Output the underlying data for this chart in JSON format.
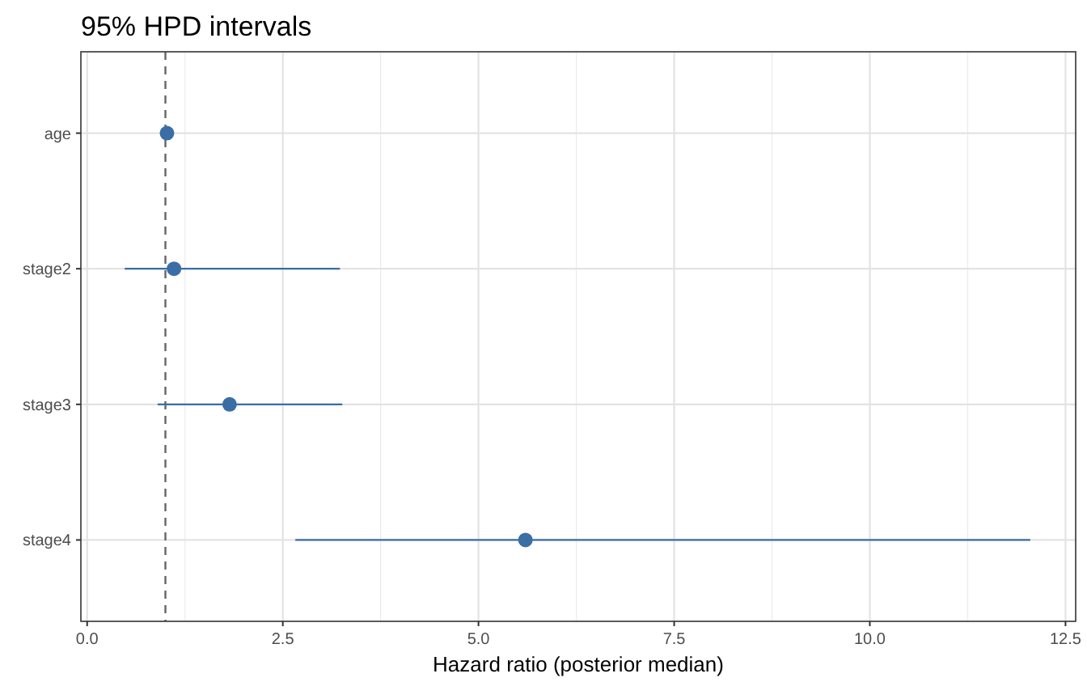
{
  "chart_data": {
    "type": "scatter",
    "orientation": "horizontal",
    "title": "95% HPD intervals",
    "xlabel": "Hazard ratio (posterior median)",
    "categories": [
      "age",
      "stage2",
      "stage3",
      "stage4"
    ],
    "values": [
      1.02,
      1.11,
      1.82,
      5.6
    ],
    "errors": [
      null,
      [
        0.48,
        3.23
      ],
      [
        0.9,
        3.26
      ],
      [
        2.66,
        12.05
      ]
    ],
    "color": "#3a6ea5",
    "xlim": [
      -0.08,
      12.63
    ],
    "xticks": [
      {
        "value": 0,
        "label": "0.0"
      },
      {
        "value": 2.5,
        "label": "2.5"
      },
      {
        "value": 5,
        "label": "5.0"
      },
      {
        "value": 7.5,
        "label": "7.5"
      },
      {
        "value": 10,
        "label": "10.0"
      },
      {
        "value": 12.5,
        "label": "12.5"
      }
    ],
    "ref_lines": [
      {
        "axis": "x",
        "value": 1,
        "label": null,
        "color": "#666666",
        "line_style": "dashed"
      }
    ],
    "grid": true,
    "marker": "circle"
  }
}
